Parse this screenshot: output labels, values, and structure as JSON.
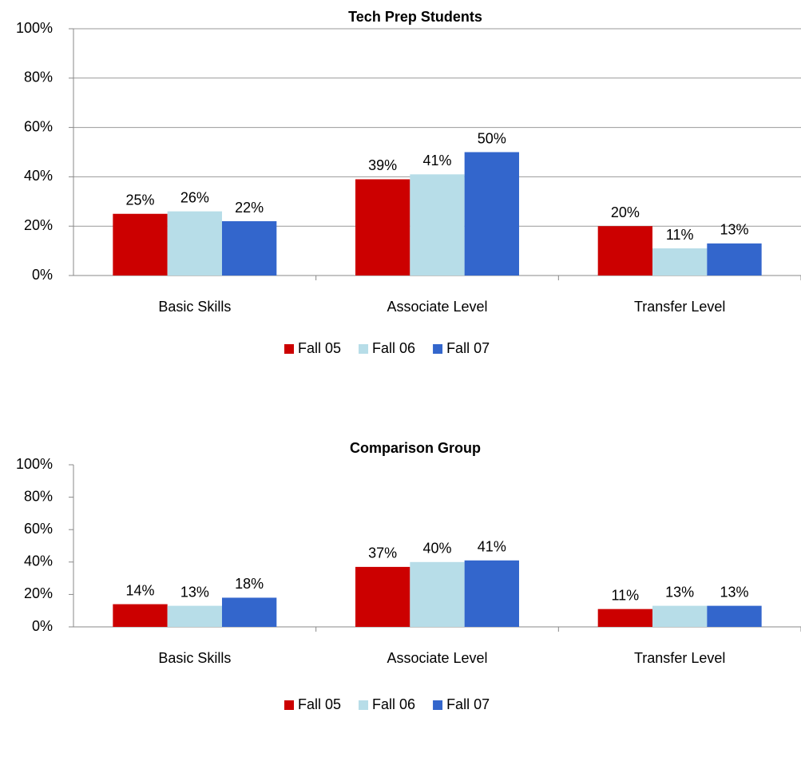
{
  "chart_data": [
    {
      "type": "bar",
      "title": "Tech Prep Students",
      "categories": [
        "Basic Skills",
        "Associate Level",
        "Transfer Level"
      ],
      "series": [
        {
          "name": "Fall 05",
          "color": "#cc0000",
          "values": [
            25,
            39,
            20
          ],
          "value_labels": [
            "25%",
            "39%",
            "20%"
          ]
        },
        {
          "name": "Fall 06",
          "color": "#b7dde8",
          "values": [
            26,
            41,
            11
          ],
          "value_labels": [
            "26%",
            "41%",
            "11%"
          ]
        },
        {
          "name": "Fall 07",
          "color": "#3366cc",
          "values": [
            22,
            50,
            13
          ],
          "value_labels": [
            "22%",
            "50%",
            "13%"
          ]
        }
      ],
      "ylim": [
        0,
        100
      ],
      "yticks": [
        {
          "value": 0,
          "label": "0%"
        },
        {
          "value": 20,
          "label": "20%"
        },
        {
          "value": 40,
          "label": "40%"
        },
        {
          "value": 60,
          "label": "60%"
        },
        {
          "value": 80,
          "label": "80%"
        },
        {
          "value": 100,
          "label": "100%"
        }
      ],
      "grid": true,
      "legend": "bottom"
    },
    {
      "type": "bar",
      "title": "Comparison Group",
      "categories": [
        "Basic Skills",
        "Associate Level",
        "Transfer Level"
      ],
      "series": [
        {
          "name": "Fall 05",
          "color": "#cc0000",
          "values": [
            14,
            37,
            11
          ],
          "value_labels": [
            "14%",
            "37%",
            "11%"
          ]
        },
        {
          "name": "Fall 06",
          "color": "#b7dde8",
          "values": [
            13,
            40,
            13
          ],
          "value_labels": [
            "13%",
            "40%",
            "13%"
          ]
        },
        {
          "name": "Fall 07",
          "color": "#3366cc",
          "values": [
            18,
            41,
            13
          ],
          "value_labels": [
            "18%",
            "41%",
            "13%"
          ]
        }
      ],
      "ylim": [
        0,
        100
      ],
      "yticks": [
        {
          "value": 0,
          "label": "0%"
        },
        {
          "value": 20,
          "label": "20%"
        },
        {
          "value": 40,
          "label": "40%"
        },
        {
          "value": 60,
          "label": "60%"
        },
        {
          "value": 80,
          "label": "80%"
        },
        {
          "value": 100,
          "label": "100%"
        }
      ],
      "grid": false,
      "legend": "bottom"
    }
  ]
}
